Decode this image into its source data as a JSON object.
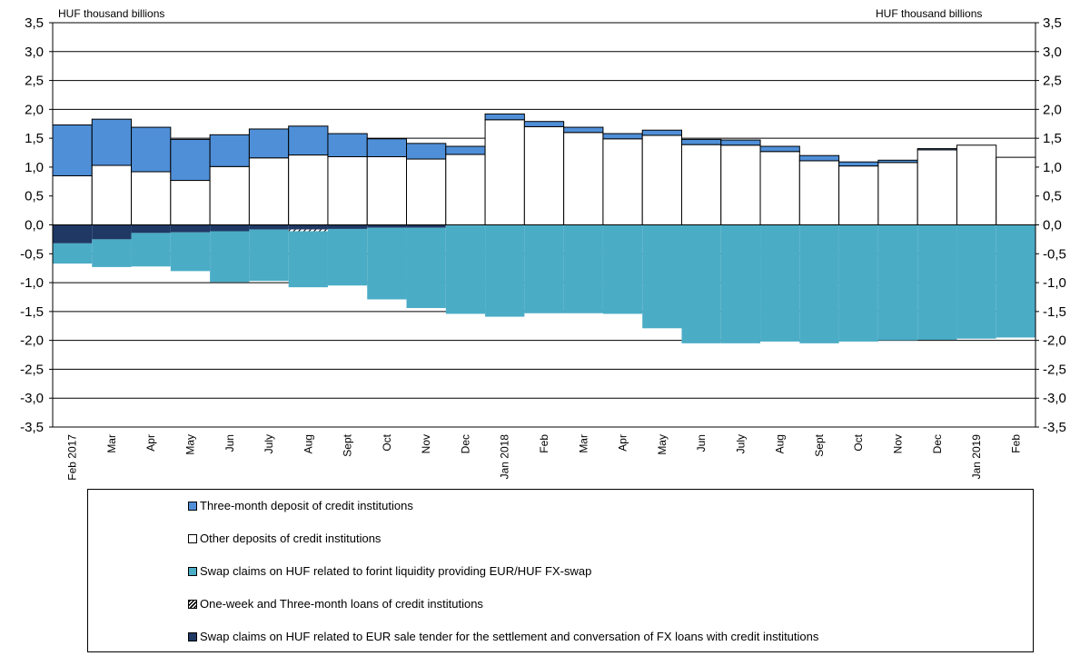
{
  "unit_left": "HUF thousand billions",
  "unit_right": "HUF thousand billions",
  "colors": {
    "three_month": "#4F8FD8",
    "other": "#FFFFFF",
    "swap_fx": "#4BACC6",
    "loans": "#404040",
    "swap_eur": "#1F3864",
    "grid": "#000000"
  },
  "legend": [
    {
      "label": "Three-month deposit of credit institutions",
      "color": "#4F8FD8",
      "pattern": "solid"
    },
    {
      "label": "Other deposits of credit institutions",
      "color": "#FFFFFF",
      "pattern": "solid"
    },
    {
      "label": "Swap claims on HUF related to forint liquidity providing EUR/HUF FX-swap",
      "color": "#4BACC6",
      "pattern": "solid"
    },
    {
      "label": "One-week and Three-month loans of credit institutions",
      "color": "#FFFFFF",
      "pattern": "hatch"
    },
    {
      "label": "Swap claims on HUF related to EUR sale tender for the settlement and conversation of FX loans with credit institutions",
      "color": "#1F3864",
      "pattern": "solid"
    }
  ],
  "chart_data": {
    "type": "bar",
    "stacked": true,
    "categories": [
      "Feb 2017",
      "Mar",
      "Apr",
      "May",
      "Jun",
      "July",
      "Aug",
      "Sept",
      "Oct",
      "Nov",
      "Dec",
      "Jan 2018",
      "Feb",
      "Mar",
      "Apr",
      "May",
      "Jun",
      "July",
      "Aug",
      "Sept",
      "Oct",
      "Nov",
      "Dec",
      "Jan 2019",
      "Feb"
    ],
    "ylim": [
      -3.5,
      3.5
    ],
    "yticks": [
      "-3,5",
      "-3,0",
      "-2,5",
      "-2,0",
      "-1,5",
      "-1,0",
      "-0,5",
      "0,0",
      "0,5",
      "1,0",
      "1,5",
      "2,0",
      "2,5",
      "3,0",
      "3,5"
    ],
    "ytick_values": [
      -3.5,
      -3.0,
      -2.5,
      -2.0,
      -1.5,
      -1.0,
      -0.5,
      0.0,
      0.5,
      1.0,
      1.5,
      2.0,
      2.5,
      3.0,
      3.5
    ],
    "grid": true,
    "series": [
      {
        "name": "Other deposits of credit institutions",
        "values": [
          0.85,
          1.03,
          0.92,
          0.77,
          1.01,
          1.16,
          1.21,
          1.18,
          1.18,
          1.14,
          1.22,
          1.82,
          1.7,
          1.6,
          1.49,
          1.55,
          1.39,
          1.38,
          1.27,
          1.11,
          1.02,
          1.08,
          1.3,
          1.38,
          1.17
        ]
      },
      {
        "name": "Three-month deposit of credit institutions",
        "values": [
          0.88,
          0.8,
          0.77,
          0.71,
          0.55,
          0.5,
          0.5,
          0.4,
          0.31,
          0.27,
          0.14,
          0.1,
          0.09,
          0.09,
          0.09,
          0.09,
          0.09,
          0.09,
          0.09,
          0.09,
          0.07,
          0.04,
          0.02,
          0.0,
          0.0
        ]
      },
      {
        "name": "Swap claims on HUF related to EUR sale tender for the settlement and conversation of FX loans with credit institutions",
        "values": [
          -0.32,
          -0.25,
          -0.14,
          -0.13,
          -0.11,
          -0.08,
          -0.08,
          -0.07,
          -0.05,
          -0.05,
          -0.01,
          0,
          0,
          0,
          0,
          0,
          0,
          0,
          0,
          0,
          0,
          0,
          0,
          0,
          0
        ]
      },
      {
        "name": "One-week and Three-month loans of credit institutions",
        "values": [
          0,
          0,
          0,
          0,
          0,
          0,
          -0.03,
          0,
          0,
          0,
          0,
          0,
          0,
          0,
          0,
          0,
          0,
          0,
          0,
          0,
          0,
          0,
          0,
          0,
          0
        ]
      },
      {
        "name": "Swap claims on HUF related to forint liquidity providing EUR/HUF FX-swap",
        "values": [
          -0.35,
          -0.48,
          -0.58,
          -0.67,
          -0.88,
          -0.89,
          -0.97,
          -0.98,
          -1.24,
          -1.39,
          -1.53,
          -1.59,
          -1.53,
          -1.53,
          -1.54,
          -1.79,
          -2.05,
          -2.05,
          -2.02,
          -2.05,
          -2.02,
          -2.0,
          -1.99,
          -1.97,
          -1.95
        ]
      }
    ]
  }
}
